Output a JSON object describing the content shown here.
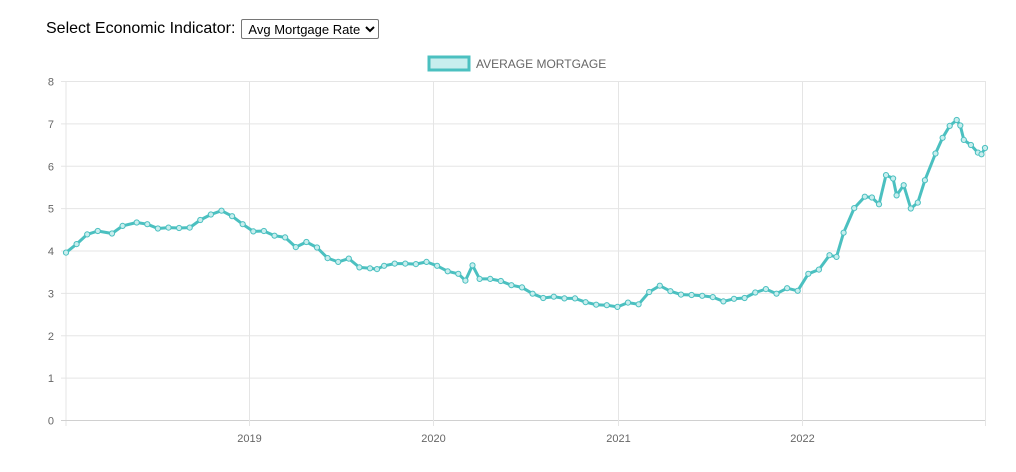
{
  "controls": {
    "label": "Select Economic Indicator:",
    "selected": "Avg Mortgage Rate"
  },
  "colors": {
    "line": "#4bc0c0",
    "fill": "#c8eeee",
    "grid": "#e5e5e5",
    "tick_text": "#666666"
  },
  "chart_data": {
    "type": "line",
    "title": "",
    "xlabel": "",
    "ylabel": "",
    "legend_position": "top-center",
    "grid": true,
    "ylim": [
      0,
      8
    ],
    "yticks": [
      0,
      1,
      2,
      3,
      4,
      5,
      6,
      7,
      8
    ],
    "xlim": [
      "2018-01-04",
      "2022-12-29"
    ],
    "xticks": [
      {
        "label": "2019",
        "date": "2019-01-01"
      },
      {
        "label": "2020",
        "date": "2020-01-01"
      },
      {
        "label": "2021",
        "date": "2021-01-01"
      },
      {
        "label": "2022",
        "date": "2022-01-01"
      }
    ],
    "series": [
      {
        "name": "AVERAGE MORTGAGE",
        "points": [
          [
            "2018-01-04",
            3.95
          ],
          [
            "2018-01-25",
            4.15
          ],
          [
            "2018-02-15",
            4.38
          ],
          [
            "2018-03-08",
            4.46
          ],
          [
            "2018-04-05",
            4.4
          ],
          [
            "2018-04-26",
            4.58
          ],
          [
            "2018-05-24",
            4.66
          ],
          [
            "2018-06-14",
            4.62
          ],
          [
            "2018-07-05",
            4.52
          ],
          [
            "2018-07-26",
            4.54
          ],
          [
            "2018-08-16",
            4.53
          ],
          [
            "2018-09-06",
            4.54
          ],
          [
            "2018-09-27",
            4.72
          ],
          [
            "2018-10-18",
            4.85
          ],
          [
            "2018-11-08",
            4.94
          ],
          [
            "2018-11-29",
            4.81
          ],
          [
            "2018-12-20",
            4.62
          ],
          [
            "2019-01-10",
            4.45
          ],
          [
            "2019-01-31",
            4.46
          ],
          [
            "2019-02-21",
            4.35
          ],
          [
            "2019-03-14",
            4.31
          ],
          [
            "2019-04-04",
            4.08
          ],
          [
            "2019-04-25",
            4.2
          ],
          [
            "2019-05-16",
            4.07
          ],
          [
            "2019-06-06",
            3.82
          ],
          [
            "2019-06-27",
            3.73
          ],
          [
            "2019-07-18",
            3.81
          ],
          [
            "2019-08-08",
            3.6
          ],
          [
            "2019-08-29",
            3.58
          ],
          [
            "2019-09-12",
            3.56
          ],
          [
            "2019-09-26",
            3.64
          ],
          [
            "2019-10-17",
            3.69
          ],
          [
            "2019-11-07",
            3.69
          ],
          [
            "2019-11-28",
            3.68
          ],
          [
            "2019-12-19",
            3.73
          ],
          [
            "2020-01-09",
            3.64
          ],
          [
            "2020-01-30",
            3.51
          ],
          [
            "2020-02-20",
            3.45
          ],
          [
            "2020-03-05",
            3.29
          ],
          [
            "2020-03-19",
            3.65
          ],
          [
            "2020-04-02",
            3.33
          ],
          [
            "2020-04-23",
            3.33
          ],
          [
            "2020-05-14",
            3.28
          ],
          [
            "2020-06-04",
            3.18
          ],
          [
            "2020-06-25",
            3.13
          ],
          [
            "2020-07-16",
            2.98
          ],
          [
            "2020-08-06",
            2.88
          ],
          [
            "2020-08-27",
            2.91
          ],
          [
            "2020-09-17",
            2.87
          ],
          [
            "2020-10-08",
            2.87
          ],
          [
            "2020-10-29",
            2.78
          ],
          [
            "2020-11-19",
            2.72
          ],
          [
            "2020-12-10",
            2.71
          ],
          [
            "2020-12-31",
            2.67
          ],
          [
            "2021-01-21",
            2.77
          ],
          [
            "2021-02-11",
            2.73
          ],
          [
            "2021-03-04",
            3.02
          ],
          [
            "2021-03-25",
            3.17
          ],
          [
            "2021-04-15",
            3.04
          ],
          [
            "2021-05-06",
            2.96
          ],
          [
            "2021-05-27",
            2.95
          ],
          [
            "2021-06-17",
            2.93
          ],
          [
            "2021-07-08",
            2.9
          ],
          [
            "2021-07-29",
            2.8
          ],
          [
            "2021-08-19",
            2.86
          ],
          [
            "2021-09-09",
            2.88
          ],
          [
            "2021-09-30",
            3.01
          ],
          [
            "2021-10-21",
            3.09
          ],
          [
            "2021-11-11",
            2.98
          ],
          [
            "2021-12-02",
            3.11
          ],
          [
            "2021-12-23",
            3.05
          ],
          [
            "2022-01-13",
            3.45
          ],
          [
            "2022-02-03",
            3.55
          ],
          [
            "2022-02-24",
            3.89
          ],
          [
            "2022-03-10",
            3.85
          ],
          [
            "2022-03-24",
            4.42
          ],
          [
            "2022-04-14",
            5.0
          ],
          [
            "2022-05-05",
            5.27
          ],
          [
            "2022-05-19",
            5.25
          ],
          [
            "2022-06-02",
            5.09
          ],
          [
            "2022-06-16",
            5.78
          ],
          [
            "2022-06-30",
            5.7
          ],
          [
            "2022-07-07",
            5.3
          ],
          [
            "2022-07-21",
            5.54
          ],
          [
            "2022-08-04",
            4.99
          ],
          [
            "2022-08-18",
            5.13
          ],
          [
            "2022-09-01",
            5.66
          ],
          [
            "2022-09-22",
            6.29
          ],
          [
            "2022-10-06",
            6.66
          ],
          [
            "2022-10-20",
            6.94
          ],
          [
            "2022-11-03",
            7.08
          ],
          [
            "2022-11-10",
            6.95
          ],
          [
            "2022-11-17",
            6.61
          ],
          [
            "2022-12-01",
            6.49
          ],
          [
            "2022-12-15",
            6.31
          ],
          [
            "2022-12-22",
            6.27
          ],
          [
            "2022-12-29",
            6.42
          ]
        ]
      }
    ]
  }
}
